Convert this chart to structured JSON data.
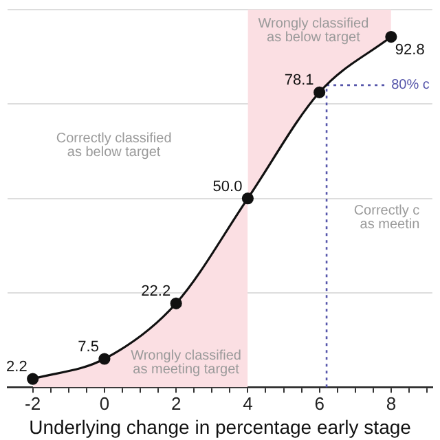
{
  "chart_data": {
    "type": "line",
    "xlabel": "Underlying change in percentage early stage",
    "x": [
      -2,
      0,
      2,
      4,
      6,
      8
    ],
    "series": [
      {
        "marker": "circle",
        "color": "#111111",
        "values": [
          2.2,
          7.5,
          22.2,
          50.0,
          78.1,
          92.8
        ],
        "value_labels": [
          "2.2",
          "7.5",
          "22.2",
          "50.0",
          "78.1",
          "92.8"
        ]
      },
      {
        "type": "area",
        "marker": "none",
        "color": "#fbdfe3",
        "x": [
          -2,
          0,
          2,
          4
        ],
        "values": [
          2.2,
          7.5,
          22.2,
          50.0
        ]
      },
      {
        "type": "area",
        "marker": "none",
        "color": "#fbdfe3",
        "x": [
          4,
          6,
          8
        ],
        "values": [
          100,
          100,
          100
        ]
      }
    ],
    "xlim": [
      -2.7,
      9.15
    ],
    "ylim": [
      0,
      100
    ],
    "xticks": [
      -2,
      {
        "value": -1.5,
        "label": null
      },
      {
        "value": -1,
        "label": null
      },
      {
        "value": -0.5,
        "label": null
      },
      0,
      {
        "value": 0.5,
        "label": null
      },
      {
        "value": 1,
        "label": null
      },
      {
        "value": 1.5,
        "label": null
      },
      2,
      {
        "value": 2.5,
        "label": null
      },
      {
        "value": 3,
        "label": null
      },
      {
        "value": 3.5,
        "label": null
      },
      4,
      {
        "value": 4.5,
        "label": null
      },
      {
        "value": 5,
        "label": null
      },
      {
        "value": 5.5,
        "label": null
      },
      6,
      {
        "value": 6.5,
        "label": null
      },
      {
        "value": 7,
        "label": null
      },
      {
        "value": 7.5,
        "label": null
      },
      8,
      {
        "value": 8.5,
        "label": null
      },
      {
        "value": 9,
        "label": null
      }
    ],
    "yticks": [
      {
        "value": 25,
        "label": null
      },
      {
        "value": 50,
        "label": null
      },
      {
        "value": 75,
        "label": null
      },
      {
        "value": 100,
        "label": null
      }
    ],
    "tick_labels": "x",
    "grid": "y",
    "line_style": "solid",
    "ref_lines": [
      {
        "axis": "x",
        "value": 6.2,
        "color": "#5555aa",
        "line_style": "dotted"
      },
      {
        "axis": "y",
        "value": 80,
        "label": "80% c",
        "color": "#5555aa",
        "line_style": "dotted"
      }
    ],
    "annotations": [
      "Correctly classified\nas below target",
      "Wrongly classified\nas below target",
      "Wrongly classified\nas meeting target",
      "Correctly c\nas meetin"
    ]
  }
}
